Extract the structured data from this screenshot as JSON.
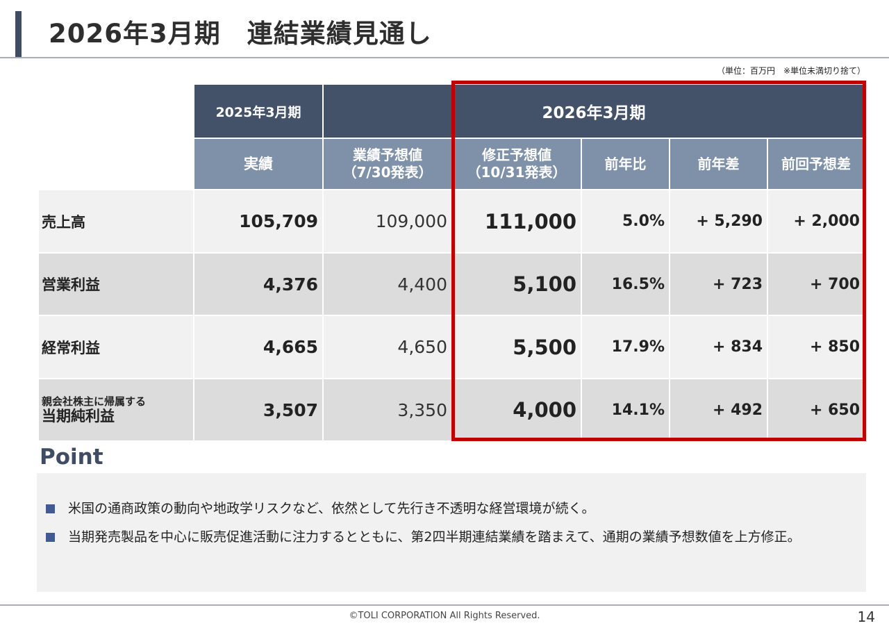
{
  "title": "2026年3月期　連結業績見通し",
  "unit_note": "（単位：百万円　※単位未満切り捨て）",
  "table": {
    "header_top": {
      "prev_year": "2025年3月期",
      "current_year": "2026年3月期"
    },
    "header_sub": {
      "actual": "実績",
      "forecast_line1": "業績予想値",
      "forecast_line2": "（7/30発表）",
      "revised_line1": "修正予想値",
      "revised_line2": "（10/31発表）",
      "yoy_ratio": "前年比",
      "yoy_diff": "前年差",
      "vs_prev_forecast": "前回予想差"
    },
    "rows": [
      {
        "label": "売上高",
        "actual": "105,709",
        "forecast": "109,000",
        "revised": "111,000",
        "yoy_ratio": "5.0%",
        "yoy_diff": "+ 5,290",
        "vs_prev": "+ 2,000"
      },
      {
        "label": "営業利益",
        "actual": "4,376",
        "forecast": "4,400",
        "revised": "5,100",
        "yoy_ratio": "16.5%",
        "yoy_diff": "+ 723",
        "vs_prev": "+ 700"
      },
      {
        "label": "経常利益",
        "actual": "4,665",
        "forecast": "4,650",
        "revised": "5,500",
        "yoy_ratio": "17.9%",
        "yoy_diff": "+ 834",
        "vs_prev": "+ 850"
      },
      {
        "label_small": "親会社株主に帰属する",
        "label": "当期純利益",
        "actual": "3,507",
        "forecast": "3,350",
        "revised": "4,000",
        "yoy_ratio": "14.1%",
        "yoy_diff": "+ 492",
        "vs_prev": "+ 650"
      }
    ]
  },
  "point": {
    "title": "Point",
    "items": [
      "米国の通商政策の動向や地政学リスクなど、依然として先行き不透明な経営環境が続く。",
      "当期発売製品を中心に販売促進活動に注力するとともに、第2四半期連結業績を踏まえて、通期の業績予想数値を上方修正。"
    ]
  },
  "footer": {
    "copyright": "©TOLI CORPORATION All Rights Reserved.",
    "page_number": "14"
  },
  "colors": {
    "header_dark": "#435268",
    "header_mid": "#7f91a8",
    "highlight_frame": "#c00000",
    "accent": "#3f4c63"
  }
}
